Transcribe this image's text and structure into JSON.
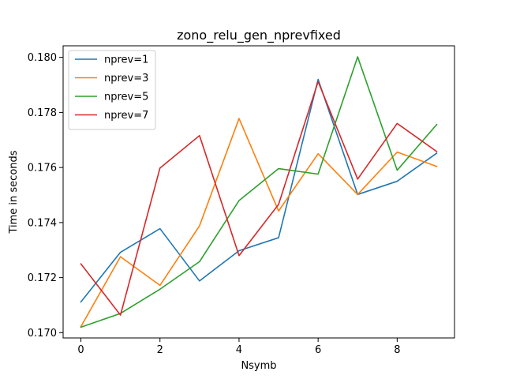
{
  "chart_data": {
    "type": "line",
    "title": "zono_relu_gen_nprevfixed",
    "xlabel": "Nsymb",
    "ylabel": "Time in seconds",
    "x": [
      0,
      1,
      2,
      3,
      4,
      5,
      6,
      7,
      8,
      9
    ],
    "xlim": [
      -0.45,
      9.45
    ],
    "ylim": [
      0.16981,
      0.18042
    ],
    "xticks": [
      0,
      2,
      4,
      6,
      8
    ],
    "yticks": [
      0.17,
      0.172,
      0.174,
      0.176,
      0.178,
      0.18
    ],
    "ytick_labels": [
      "0.170",
      "0.172",
      "0.174",
      "0.176",
      "0.178",
      "0.180"
    ],
    "grid": false,
    "legend_position": "top-left",
    "series": [
      {
        "name": "nprev=1",
        "color": "#1f77b4",
        "values": [
          0.17112,
          0.17292,
          0.17378,
          0.17188,
          0.17298,
          0.17345,
          0.1792,
          0.17502,
          0.1755,
          0.17652
        ]
      },
      {
        "name": "nprev=3",
        "color": "#ff7f0e",
        "values": [
          0.17022,
          0.17276,
          0.17172,
          0.17388,
          0.17778,
          0.17442,
          0.1765,
          0.17502,
          0.17656,
          0.17604
        ]
      },
      {
        "name": "nprev=5",
        "color": "#2ca02c",
        "values": [
          0.1702,
          0.1707,
          0.17158,
          0.17258,
          0.1748,
          0.17596,
          0.17576,
          0.18002,
          0.1759,
          0.17756
        ]
      },
      {
        "name": "nprev=7",
        "color": "#d62728",
        "values": [
          0.1725,
          0.17064,
          0.17598,
          0.17716,
          0.1728,
          0.17466,
          0.17912,
          0.17558,
          0.1776,
          0.17658
        ]
      }
    ]
  }
}
